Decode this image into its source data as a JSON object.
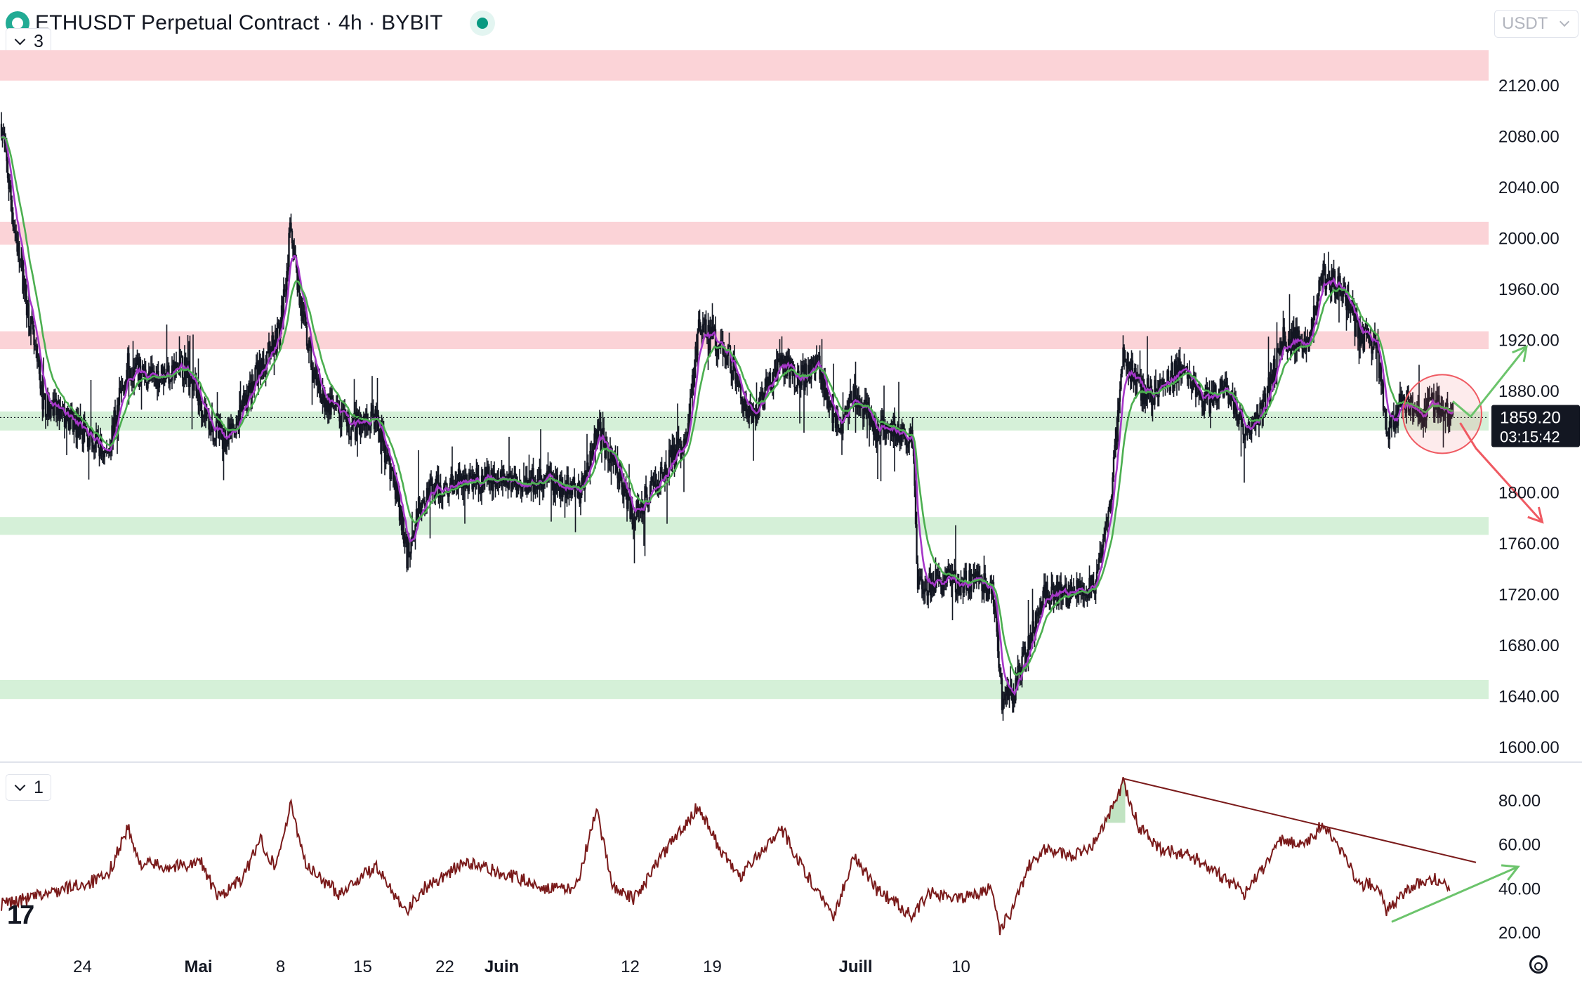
{
  "header": {
    "title": "ETHUSDT Perpetual Contract · 4h · BYBIT",
    "indicator_count_main": "3",
    "indicator_count_sub": "1",
    "currency_unit": "USDT",
    "logo_text": "17"
  },
  "colors": {
    "candle": "#131722",
    "ma_fast": "#a536c8",
    "ma_slow": "#4caf50",
    "resistance_zone": "#fbd3d7",
    "support_zone": "#d5f0d8",
    "rsi_line": "#7a1a1a",
    "up_arrow": "#6cc46c",
    "down_arrow": "#ef5a62"
  },
  "chart_data": [
    {
      "type": "candlestick",
      "title": "ETHUSDT Perpetual Contract · 4h · BYBIT",
      "xlabel": "",
      "ylabel": "",
      "ylim": [
        1600,
        2140
      ],
      "y_ticks": [
        "2120.00",
        "2080.00",
        "2040.00",
        "2000.00",
        "1960.00",
        "1920.00",
        "1880.00",
        "1800.00",
        "1760.00",
        "1720.00",
        "1680.00",
        "1640.00",
        "1600.00"
      ],
      "x_ticks": [
        "24",
        "Mai",
        "8",
        "15",
        "22",
        "Juin",
        "12",
        "19",
        "Juill",
        "10"
      ],
      "last_price": "1859.20",
      "last_price_value": 1859.2,
      "countdown": "03:15:42",
      "grid": false,
      "resistance_zones": [
        [
          2124,
          2148
        ],
        [
          1995,
          2013
        ],
        [
          1913,
          1927
        ]
      ],
      "support_zones": [
        [
          1849,
          1864
        ],
        [
          1767,
          1781
        ],
        [
          1638,
          1653
        ]
      ],
      "path_keypoints": [
        [
          0,
          2090
        ],
        [
          12,
          2010
        ],
        [
          40,
          1870
        ],
        [
          75,
          1850
        ],
        [
          100,
          1830
        ],
        [
          120,
          1900
        ],
        [
          140,
          1890
        ],
        [
          175,
          1900
        ],
        [
          200,
          1850
        ],
        [
          215,
          1840
        ],
        [
          240,
          1890
        ],
        [
          265,
          1930
        ],
        [
          275,
          2010
        ],
        [
          285,
          1940
        ],
        [
          300,
          1880
        ],
        [
          330,
          1850
        ],
        [
          355,
          1860
        ],
        [
          375,
          1800
        ],
        [
          385,
          1750
        ],
        [
          400,
          1800
        ],
        [
          440,
          1810
        ],
        [
          480,
          1810
        ],
        [
          520,
          1810
        ],
        [
          550,
          1800
        ],
        [
          565,
          1850
        ],
        [
          585,
          1820
        ],
        [
          600,
          1780
        ],
        [
          620,
          1810
        ],
        [
          650,
          1840
        ],
        [
          662,
          1930
        ],
        [
          690,
          1910
        ],
        [
          710,
          1860
        ],
        [
          740,
          1900
        ],
        [
          760,
          1890
        ],
        [
          775,
          1900
        ],
        [
          795,
          1850
        ],
        [
          810,
          1880
        ],
        [
          830,
          1850
        ],
        [
          850,
          1850
        ],
        [
          865,
          1840
        ],
        [
          870,
          1730
        ],
        [
          900,
          1730
        ],
        [
          930,
          1730
        ],
        [
          942,
          1720
        ],
        [
          950,
          1640
        ],
        [
          960,
          1640
        ],
        [
          975,
          1680
        ],
        [
          990,
          1720
        ],
        [
          1020,
          1720
        ],
        [
          1040,
          1730
        ],
        [
          1055,
          1810
        ],
        [
          1065,
          1910
        ],
        [
          1080,
          1880
        ],
        [
          1100,
          1880
        ],
        [
          1120,
          1900
        ],
        [
          1140,
          1870
        ],
        [
          1160,
          1880
        ],
        [
          1180,
          1850
        ],
        [
          1200,
          1870
        ],
        [
          1215,
          1920
        ],
        [
          1240,
          1920
        ],
        [
          1255,
          1970
        ],
        [
          1275,
          1960
        ],
        [
          1290,
          1920
        ],
        [
          1305,
          1920
        ],
        [
          1315,
          1850
        ],
        [
          1330,
          1870
        ],
        [
          1345,
          1860
        ],
        [
          1360,
          1870
        ],
        [
          1378,
          1862
        ]
      ],
      "annotations": [
        {
          "type": "circle",
          "x": 1368,
          "y": 1862
        },
        {
          "type": "arrow",
          "points": [
            [
              1378,
              1872
            ],
            [
              1395,
              1860
            ],
            [
              1448,
              1915
            ]
          ]
        },
        {
          "type": "arrow",
          "points": [
            [
              1385,
              1855
            ],
            [
              1400,
              1835
            ],
            [
              1463,
              1777
            ]
          ]
        }
      ]
    },
    {
      "type": "line",
      "title": "",
      "ylim": [
        12,
        90
      ],
      "y_ticks": [
        "80.00",
        "60.00",
        "40.00",
        "20.00"
      ],
      "keypoints": [
        [
          0,
          33
        ],
        [
          30,
          36
        ],
        [
          60,
          40
        ],
        [
          100,
          45
        ],
        [
          120,
          68
        ],
        [
          130,
          52
        ],
        [
          160,
          50
        ],
        [
          190,
          52
        ],
        [
          205,
          36
        ],
        [
          230,
          45
        ],
        [
          245,
          63
        ],
        [
          260,
          50
        ],
        [
          275,
          78
        ],
        [
          290,
          50
        ],
        [
          320,
          38
        ],
        [
          355,
          50
        ],
        [
          385,
          30
        ],
        [
          400,
          40
        ],
        [
          440,
          52
        ],
        [
          490,
          45
        ],
        [
          520,
          40
        ],
        [
          545,
          40
        ],
        [
          565,
          75
        ],
        [
          580,
          42
        ],
        [
          600,
          35
        ],
        [
          620,
          50
        ],
        [
          662,
          78
        ],
        [
          680,
          60
        ],
        [
          700,
          45
        ],
        [
          740,
          68
        ],
        [
          760,
          50
        ],
        [
          790,
          28
        ],
        [
          810,
          55
        ],
        [
          830,
          40
        ],
        [
          865,
          28
        ],
        [
          880,
          38
        ],
        [
          910,
          36
        ],
        [
          940,
          40
        ],
        [
          948,
          22
        ],
        [
          960,
          30
        ],
        [
          975,
          50
        ],
        [
          990,
          58
        ],
        [
          1020,
          55
        ],
        [
          1040,
          62
        ],
        [
          1055,
          78
        ],
        [
          1065,
          88
        ],
        [
          1080,
          68
        ],
        [
          1100,
          58
        ],
        [
          1130,
          55
        ],
        [
          1160,
          45
        ],
        [
          1180,
          38
        ],
        [
          1200,
          50
        ],
        [
          1215,
          62
        ],
        [
          1240,
          60
        ],
        [
          1255,
          70
        ],
        [
          1275,
          55
        ],
        [
          1290,
          42
        ],
        [
          1305,
          42
        ],
        [
          1315,
          30
        ],
        [
          1330,
          38
        ],
        [
          1345,
          42
        ],
        [
          1360,
          45
        ],
        [
          1375,
          42
        ]
      ],
      "overbought_fill_peak": [
        1055,
        88
      ],
      "trendline_upper": [
        [
          1066,
          90
        ],
        [
          1400,
          52
        ]
      ],
      "trendline_lower_arrow": [
        [
          1320,
          25
        ],
        [
          1440,
          50
        ]
      ]
    }
  ]
}
